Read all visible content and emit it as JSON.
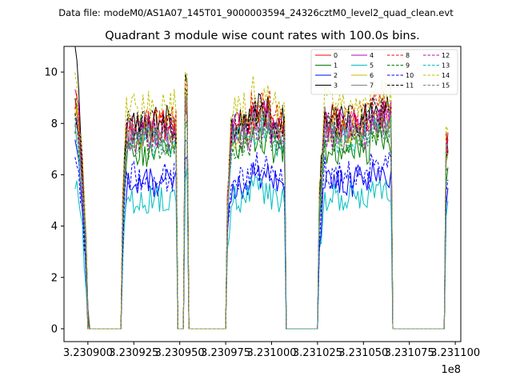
{
  "chart_data": {
    "type": "line",
    "suptitle": "Data file: modeM0/AS1A07_145T01_9000003594_24326cztM0_level2_quad_clean.evt",
    "title": "Quadrant 3 module wise count rates with 100.0s bins.",
    "xlabel": "",
    "ylabel": "",
    "x_offset_label": "1e8",
    "xlim": [
      3.230887,
      3.231103
    ],
    "ylim": [
      -0.5,
      11.0
    ],
    "x_ticks": [
      3.2309,
      3.230925,
      3.23095,
      3.230975,
      3.231,
      3.231025,
      3.23105,
      3.231075,
      3.2311
    ],
    "x_tick_labels": [
      "3.230900",
      "3.230925",
      "3.230950",
      "3.230975",
      "3.231000",
      "3.231025",
      "3.231050",
      "3.231075",
      "3.231100"
    ],
    "y_ticks": [
      0,
      2,
      4,
      6,
      8,
      10
    ],
    "y_tick_labels": [
      "0",
      "2",
      "4",
      "6",
      "8",
      "10"
    ],
    "grid": false,
    "legend_position": "top-right",
    "legend_columns": 4,
    "on_intervals": [
      [
        3.230893,
        3.2309,
        8.0
      ],
      [
        3.230919,
        3.230948,
        7.6
      ],
      [
        3.230953,
        3.230954,
        8.4
      ],
      [
        3.230976,
        3.231007,
        7.6
      ],
      [
        3.231026,
        3.231065,
        7.7
      ],
      [
        3.231095,
        3.231096,
        6.5
      ]
    ],
    "series": [
      {
        "name": "0",
        "color": "#ff0000",
        "style": "solid",
        "level": 8.1,
        "start": 9.2
      },
      {
        "name": "1",
        "color": "#008000",
        "style": "solid",
        "level": 7.1,
        "start": 8.6
      },
      {
        "name": "2",
        "color": "#0000ff",
        "style": "solid",
        "level": 5.8,
        "start": 7.1
      },
      {
        "name": "3",
        "color": "#000000",
        "style": "solid",
        "level": 8.3,
        "start": 10.5
      },
      {
        "name": "4",
        "color": "#bf00bf",
        "style": "solid",
        "level": 8.0,
        "start": 9.3
      },
      {
        "name": "5",
        "color": "#00bfbf",
        "style": "solid",
        "level": 5.2,
        "start": 5.4
      },
      {
        "name": "6",
        "color": "#bfbf00",
        "style": "solid",
        "level": 7.8,
        "start": 8.4
      },
      {
        "name": "7",
        "color": "#808080",
        "style": "solid",
        "level": 7.9,
        "start": 8.0
      },
      {
        "name": "8",
        "color": "#ff0000",
        "style": "dashed",
        "level": 8.4,
        "start": 8.9
      },
      {
        "name": "9",
        "color": "#008000",
        "style": "dashed",
        "level": 7.4,
        "start": 8.2
      },
      {
        "name": "10",
        "color": "#0000ff",
        "style": "dashed",
        "level": 6.1,
        "start": 6.4
      },
      {
        "name": "11",
        "color": "#000000",
        "style": "dashed",
        "level": 8.1,
        "start": 8.6
      },
      {
        "name": "12",
        "color": "#bf00bf",
        "style": "dashed",
        "level": 7.7,
        "start": 8.0
      },
      {
        "name": "13",
        "color": "#00bfbf",
        "style": "dashed",
        "level": 7.5,
        "start": 7.9
      },
      {
        "name": "14",
        "color": "#bfbf00",
        "style": "dashed",
        "level": 8.9,
        "start": 9.4
      },
      {
        "name": "15",
        "color": "#808080",
        "style": "dashed",
        "level": 7.6,
        "start": 8.0
      }
    ]
  }
}
